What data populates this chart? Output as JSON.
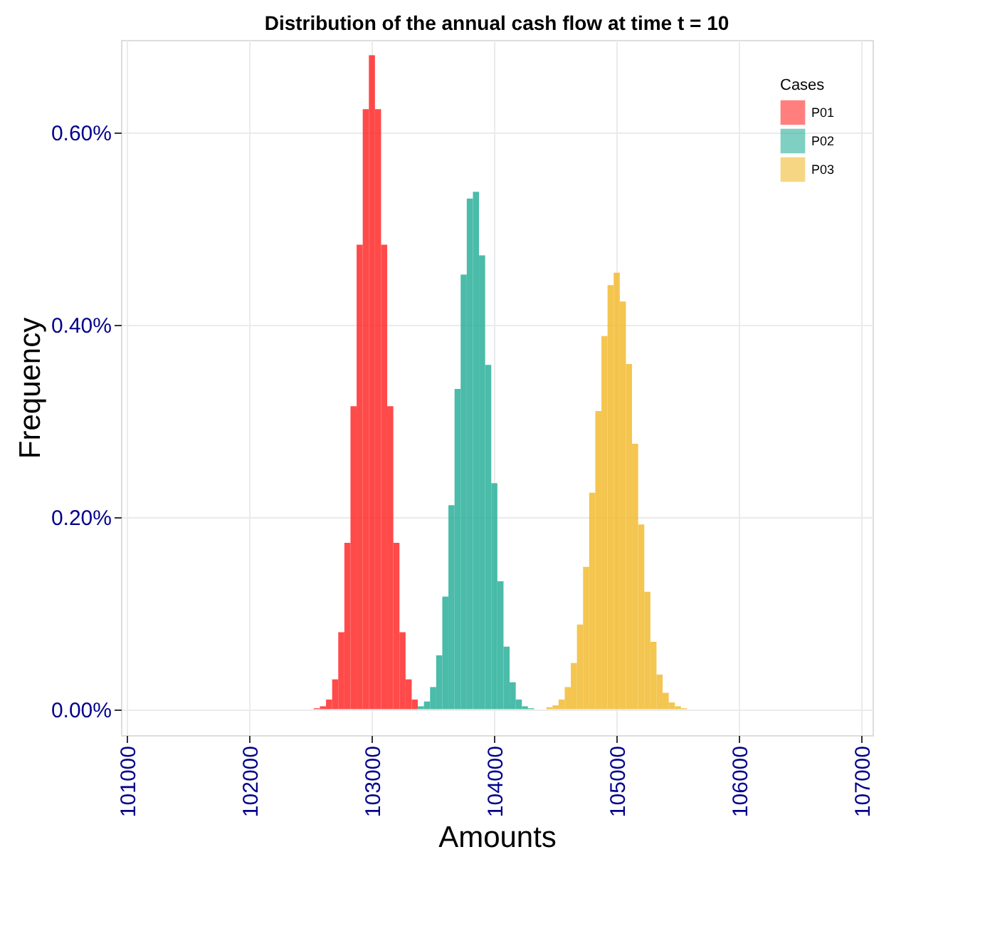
{
  "chart_data": {
    "type": "histogram",
    "title": "Distribution of the annual cash flow at time t = 10",
    "xlabel": "Amounts",
    "ylabel": "Frequency",
    "legend_title": "Cases",
    "bins": [
      102525,
      102575,
      102625,
      102675,
      102725,
      102775,
      102825,
      102875,
      102925,
      102975,
      103025,
      103075,
      103125,
      103175,
      103225,
      103275,
      103325,
      103375,
      103425,
      103475,
      103525,
      103575,
      103625,
      103675,
      103725,
      103775,
      103825,
      103875,
      103925,
      103975,
      104025,
      104075,
      104125,
      104175,
      104225,
      104275,
      104325,
      104375,
      104425,
      104475,
      104525,
      104575,
      104625,
      104675,
      104725,
      104775,
      104825,
      104875,
      104925,
      104975,
      105025,
      105075,
      105125,
      105175,
      105225,
      105275,
      105325,
      105375,
      105425,
      105475,
      105525,
      105575
    ],
    "series": [
      {
        "name": "P01",
        "color": "#ff2a2a",
        "values": [
          0.001,
          0.003,
          0.01,
          0.031,
          0.08,
          0.173,
          0.315,
          0.483,
          0.624,
          0.68,
          0.624,
          0.483,
          0.315,
          0.173,
          0.08,
          0.031,
          0.01,
          null,
          null,
          null,
          null,
          null,
          null,
          null,
          null,
          null,
          null,
          null,
          null,
          null,
          null,
          null,
          null,
          null,
          null,
          null,
          null,
          null,
          null,
          null,
          null,
          null,
          null,
          null,
          null,
          null,
          null,
          null,
          null,
          null,
          null,
          null,
          null,
          null,
          null,
          null,
          null,
          null,
          null,
          null,
          null
        ]
      },
      {
        "name": "P02",
        "color": "#2ab09a",
        "values": [
          null,
          null,
          null,
          null,
          null,
          null,
          null,
          null,
          null,
          null,
          null,
          null,
          null,
          null,
          null,
          null,
          null,
          0.003,
          0.008,
          0.023,
          0.056,
          0.117,
          0.212,
          0.333,
          0.452,
          0.531,
          0.538,
          0.472,
          0.358,
          0.235,
          0.133,
          0.065,
          0.028,
          0.01,
          0.003,
          0.001,
          null,
          null,
          null,
          null,
          null,
          null,
          null,
          null,
          null,
          null,
          null,
          null,
          null,
          null,
          null,
          null,
          null,
          null,
          null,
          null,
          null,
          null,
          null,
          null,
          null
        ]
      },
      {
        "name": "P03",
        "color": "#f2bb30",
        "values": [
          null,
          null,
          null,
          null,
          null,
          null,
          null,
          null,
          null,
          null,
          null,
          null,
          null,
          null,
          null,
          null,
          null,
          null,
          null,
          null,
          null,
          null,
          null,
          null,
          null,
          null,
          null,
          null,
          null,
          null,
          null,
          null,
          null,
          null,
          null,
          null,
          null,
          null,
          0.002,
          0.004,
          0.01,
          0.023,
          0.048,
          0.088,
          0.148,
          0.225,
          0.31,
          0.388,
          0.441,
          0.454,
          0.424,
          0.359,
          0.276,
          0.192,
          0.122,
          0.07,
          0.036,
          0.017,
          0.007,
          0.003,
          0.001
        ]
      }
    ],
    "xlim": [
      100950,
      107090
    ],
    "xticks": [
      101000,
      102000,
      103000,
      104000,
      105000,
      106000,
      107000
    ],
    "ylim": [
      -0.027,
      0.696
    ],
    "yticks": [
      {
        "value": 0,
        "label": "0.00%"
      },
      {
        "value": 0.2,
        "label": "0.20%"
      },
      {
        "value": 0.4,
        "label": "0.40%"
      },
      {
        "value": 0.6,
        "label": "0.60%"
      }
    ],
    "grid": true,
    "legend": "top right"
  }
}
